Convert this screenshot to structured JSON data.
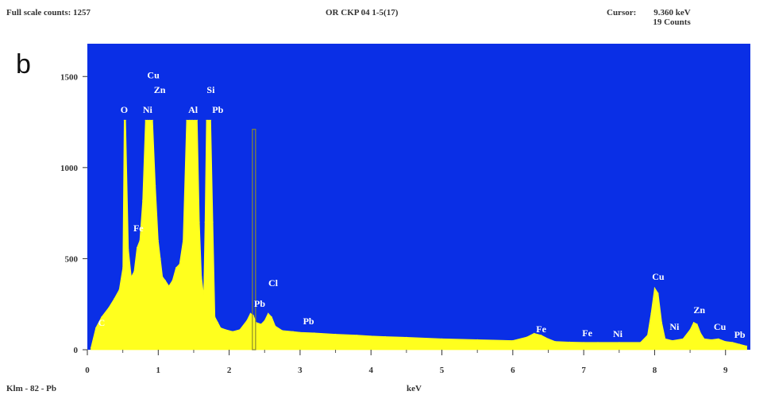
{
  "header": {
    "full_scale": "Full scale counts: 1257",
    "sample": "OR CKP 04 1-5(17)",
    "cursor_label": "Cursor:",
    "cursor_kev": "9.360 keV",
    "cursor_counts": "19 Counts"
  },
  "panel_label": "b",
  "footer": {
    "left": "Klm - 82 - Pb"
  },
  "colors": {
    "plot_bg": "#0a2fe6",
    "spectrum": "#ffff1e",
    "peak_label": "#ffffff",
    "marker": "#8a8a2a"
  },
  "chart_data": {
    "type": "area",
    "title": "",
    "xlabel": "keV",
    "ylabel": "",
    "xlim": [
      0,
      9.35
    ],
    "ylim": [
      0,
      1680
    ],
    "xticks": [
      "0",
      "1",
      "2",
      "3",
      "4",
      "5",
      "6",
      "7",
      "8",
      "9"
    ],
    "yticks": [
      "0",
      "500",
      "1000",
      "1500"
    ],
    "grid": false,
    "cursor_marker_kev": 2.35,
    "series": [
      {
        "x": [
          0.05,
          0.12,
          0.2,
          0.3,
          0.38,
          0.45,
          0.5,
          0.52,
          0.54,
          0.58,
          0.62,
          0.66,
          0.7,
          0.74,
          0.78,
          0.82,
          0.85,
          0.88,
          0.92,
          0.96,
          1.0,
          1.03,
          1.06,
          1.1,
          1.15,
          1.2,
          1.25,
          1.3,
          1.35,
          1.4,
          1.44,
          1.46,
          1.48,
          1.52,
          1.55,
          1.58,
          1.61,
          1.64,
          1.66,
          1.68,
          1.7,
          1.72,
          1.74,
          1.77,
          1.8,
          1.84,
          1.88,
          1.95,
          2.05,
          2.15,
          2.25,
          2.3,
          2.34,
          2.38,
          2.45,
          2.5,
          2.55,
          2.6,
          2.65,
          2.75,
          2.9,
          3.0,
          3.2,
          3.5,
          3.8,
          4.0,
          4.2,
          4.5,
          5.0,
          5.5,
          6.0,
          6.2,
          6.3,
          6.4,
          6.5,
          6.6,
          6.8,
          7.0,
          7.2,
          7.5,
          7.8,
          7.9,
          7.95,
          8.0,
          8.05,
          8.1,
          8.15,
          8.25,
          8.4,
          8.5,
          8.55,
          8.6,
          8.65,
          8.7,
          8.8,
          8.9,
          9.0,
          9.1,
          9.2,
          9.3
        ],
        "y": [
          10,
          120,
          180,
          230,
          280,
          330,
          450,
          1260,
          1260,
          550,
          400,
          430,
          560,
          600,
          820,
          1260,
          1260,
          1260,
          1260,
          900,
          600,
          500,
          400,
          380,
          350,
          380,
          450,
          470,
          600,
          1260,
          1260,
          1260,
          1260,
          1260,
          1260,
          700,
          400,
          300,
          700,
          1260,
          1260,
          1260,
          1260,
          700,
          180,
          150,
          120,
          110,
          100,
          110,
          160,
          200,
          190,
          150,
          140,
          160,
          200,
          180,
          130,
          105,
          100,
          95,
          92,
          85,
          80,
          75,
          72,
          68,
          60,
          55,
          50,
          70,
          90,
          80,
          60,
          45,
          42,
          40,
          40,
          40,
          40,
          80,
          200,
          340,
          310,
          150,
          60,
          50,
          60,
          110,
          150,
          140,
          90,
          60,
          55,
          60,
          45,
          40,
          30,
          20
        ]
      }
    ],
    "peak_labels": [
      {
        "text": "C",
        "x": 0.2,
        "y": 130
      },
      {
        "text": "O",
        "x": 0.52,
        "y": 1300
      },
      {
        "text": "Cu",
        "x": 0.93,
        "y": 1490
      },
      {
        "text": "Zn",
        "x": 1.02,
        "y": 1410
      },
      {
        "text": "Ni",
        "x": 0.85,
        "y": 1300
      },
      {
        "text": "Fe",
        "x": 0.72,
        "y": 650
      },
      {
        "text": "Al",
        "x": 1.49,
        "y": 1300
      },
      {
        "text": "Si",
        "x": 1.74,
        "y": 1410
      },
      {
        "text": "Pb",
        "x": 1.84,
        "y": 1300
      },
      {
        "text": "Cl",
        "x": 2.62,
        "y": 350
      },
      {
        "text": "Pb",
        "x": 2.43,
        "y": 235
      },
      {
        "text": "Pb",
        "x": 3.12,
        "y": 140
      },
      {
        "text": "Fe",
        "x": 6.4,
        "y": 95
      },
      {
        "text": "Fe",
        "x": 7.05,
        "y": 75
      },
      {
        "text": "Ni",
        "x": 7.48,
        "y": 70
      },
      {
        "text": "Cu",
        "x": 8.05,
        "y": 385
      },
      {
        "text": "Ni",
        "x": 8.28,
        "y": 110
      },
      {
        "text": "Zn",
        "x": 8.63,
        "y": 200
      },
      {
        "text": "Cu",
        "x": 8.92,
        "y": 110
      },
      {
        "text": "Pb",
        "x": 9.2,
        "y": 65
      }
    ]
  }
}
